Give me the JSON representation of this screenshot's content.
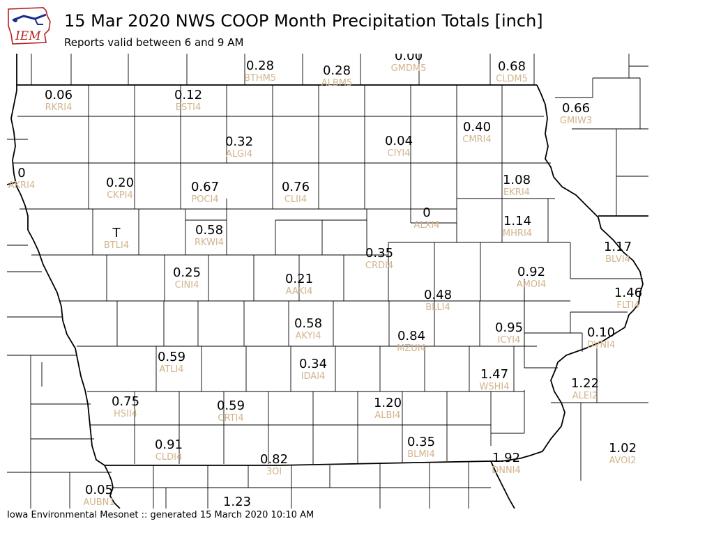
{
  "header": {
    "logo_text": "IEM",
    "title": "15 Mar 2020 NWS COOP Month Precipitation Totals [inch]",
    "subtitle": "Reports valid between 6 and 9 AM"
  },
  "footer": {
    "text": "Iowa Environmental Mesonet :: generated 15 March 2020 10:10 AM"
  },
  "colors": {
    "value_text": "#000000",
    "station_text": "#d2b48c",
    "boundary": "#000000"
  },
  "stations": [
    {
      "id": "BTHM5",
      "value": "0.28"
    },
    {
      "id": "ALBM5",
      "value": "0.28"
    },
    {
      "id": "GMDM5",
      "value": "0.00"
    },
    {
      "id": "CLDM5",
      "value": "0.68"
    },
    {
      "id": "RKRI4",
      "value": "0.06"
    },
    {
      "id": "ESTI4",
      "value": "0.12"
    },
    {
      "id": "GMIW3",
      "value": "0.66"
    },
    {
      "id": "CMRI4",
      "value": "0.40"
    },
    {
      "id": "ALGI4",
      "value": "0.32"
    },
    {
      "id": "CIYI4",
      "value": "0.04"
    },
    {
      "id": "AKRI4",
      "value": "0"
    },
    {
      "id": "CKPI4",
      "value": "0.20"
    },
    {
      "id": "POCI4",
      "value": "0.67"
    },
    {
      "id": "CLII4",
      "value": "0.76"
    },
    {
      "id": "EKRI4",
      "value": "1.08"
    },
    {
      "id": "ALXI4",
      "value": "0"
    },
    {
      "id": "MHRI4",
      "value": "1.14"
    },
    {
      "id": "BTLI4",
      "value": "T"
    },
    {
      "id": "RKWI4",
      "value": "0.58"
    },
    {
      "id": "BLVI4",
      "value": "1.17"
    },
    {
      "id": "CRDI4",
      "value": "0.35"
    },
    {
      "id": "CINI4",
      "value": "0.25"
    },
    {
      "id": "AMOI4",
      "value": "0.92"
    },
    {
      "id": "AAKI4",
      "value": "0.21"
    },
    {
      "id": "FLTI4",
      "value": "1.46"
    },
    {
      "id": "BLLI4",
      "value": "0.48"
    },
    {
      "id": "AKYI4",
      "value": "0.58"
    },
    {
      "id": "ICYI4",
      "value": "0.95"
    },
    {
      "id": "MZUI4",
      "value": "0.84"
    },
    {
      "id": "DVNI4",
      "value": "0.10"
    },
    {
      "id": "ATLI4",
      "value": "0.59"
    },
    {
      "id": "IDAI4",
      "value": "0.34"
    },
    {
      "id": "WSHI4",
      "value": "1.47"
    },
    {
      "id": "ALEI2",
      "value": "1.22"
    },
    {
      "id": "HSII4",
      "value": "0.75"
    },
    {
      "id": "CRTI4",
      "value": "0.59"
    },
    {
      "id": "ALBI4",
      "value": "1.20"
    },
    {
      "id": "CLDI4",
      "value": "0.91"
    },
    {
      "id": "BLMI4",
      "value": "0.35"
    },
    {
      "id": "3OI",
      "value": "0.82"
    },
    {
      "id": "DNNI4",
      "value": "1.92"
    },
    {
      "id": "AVOI2",
      "value": "1.02"
    },
    {
      "id": "AUBN1",
      "value": "0.05"
    },
    {
      "id": "",
      "value": "1.23"
    }
  ]
}
